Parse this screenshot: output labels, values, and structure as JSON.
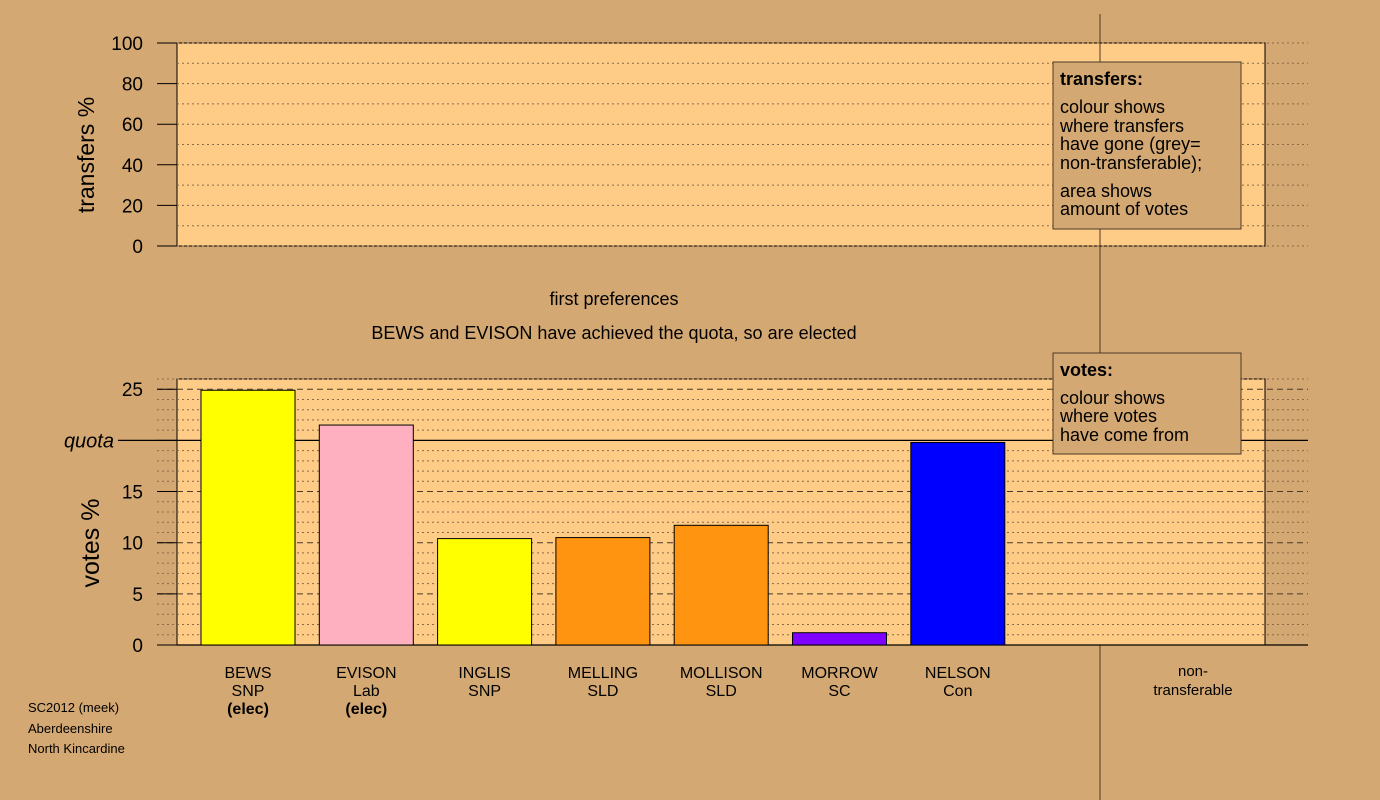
{
  "colors": {
    "background": "#d4a872",
    "panel": "#ffcc88",
    "legend_box": "#d4a872",
    "grey": "#808080"
  },
  "top_panel": {
    "ylabel": "transfers %",
    "yticks": [
      "0",
      "20",
      "40",
      "60",
      "80",
      "100"
    ],
    "legend": {
      "title": "transfers:",
      "lines1": [
        "colour shows",
        "where transfers",
        "have gone (grey=",
        "non-transferable);"
      ],
      "lines2": [
        "area shows",
        "amount of votes"
      ]
    }
  },
  "headings": {
    "stage": "first preferences",
    "status": "BEWS and EVISON have achieved the quota, so are elected"
  },
  "bottom_panel": {
    "ylabel": "votes %",
    "quota_label": "quota",
    "legend": {
      "title": "votes:",
      "lines1": [
        "colour shows",
        "where votes",
        "have come from"
      ]
    }
  },
  "footer": {
    "lines": [
      "SC2012 (meek)",
      "Aberdeenshire",
      "North Kincardine"
    ]
  },
  "chart_data": [
    {
      "type": "bar",
      "name": "transfers",
      "ylabel": "transfers %",
      "ylim": [
        0,
        100
      ],
      "yticks": [
        0,
        20,
        40,
        60,
        80,
        100
      ],
      "categories": [],
      "values": [],
      "grid": true
    },
    {
      "type": "bar",
      "name": "votes",
      "title": "first preferences",
      "subtitle": "BEWS and EVISON have achieved the quota, so are elected",
      "ylabel": "votes %",
      "ylim": [
        0,
        26
      ],
      "yticks": [
        0,
        5,
        10,
        15,
        20,
        25
      ],
      "quota": 20,
      "quota_label": "quota",
      "grid": true,
      "categories": [
        {
          "name": "BEWS",
          "party": "SNP",
          "status": "(elec)",
          "value": 24.9,
          "color": "#ffff00"
        },
        {
          "name": "EVISON",
          "party": "Lab",
          "status": "(elec)",
          "value": 21.5,
          "color": "#ffb0c0"
        },
        {
          "name": "INGLIS",
          "party": "SNP",
          "status": "",
          "value": 10.4,
          "color": "#ffff00"
        },
        {
          "name": "MELLING",
          "party": "SLD",
          "status": "",
          "value": 10.5,
          "color": "#ff9410"
        },
        {
          "name": "MOLLISON",
          "party": "SLD",
          "status": "",
          "value": 11.7,
          "color": "#ff9410"
        },
        {
          "name": "MORROW",
          "party": "SC",
          "status": "",
          "value": 1.2,
          "color": "#8000ff"
        },
        {
          "name": "NELSON",
          "party": "Con",
          "status": "",
          "value": 19.8,
          "color": "#0000ff"
        }
      ],
      "nontransferable": {
        "label1": "non-",
        "label2": "transferable",
        "value": 0
      }
    }
  ]
}
